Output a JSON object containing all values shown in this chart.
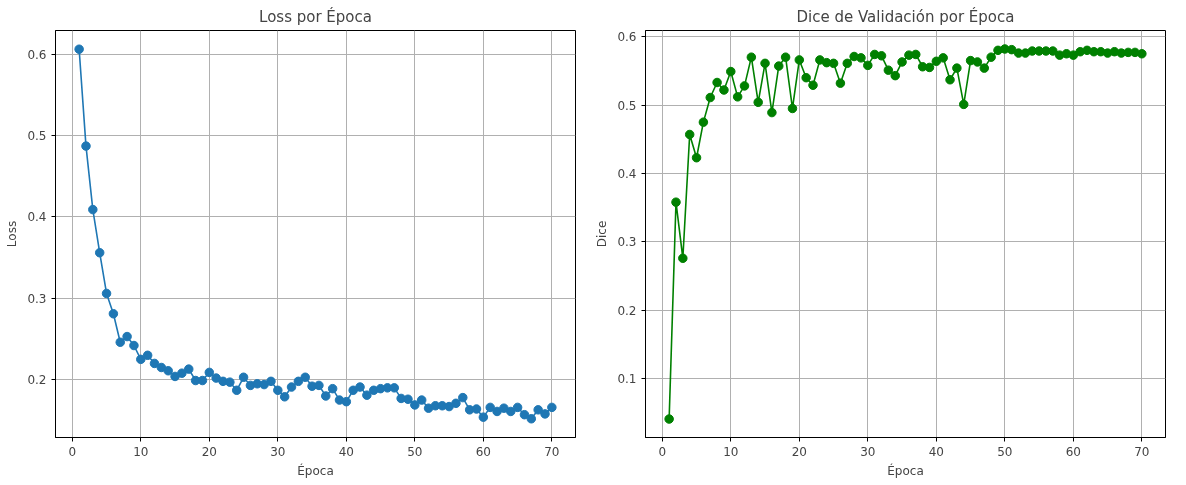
{
  "chart_data": [
    {
      "type": "line",
      "title": "Loss por Época",
      "xlabel": "Época",
      "ylabel": "Loss",
      "marker": "circle",
      "line_style": "solid",
      "grid": true,
      "x": [
        1,
        2,
        3,
        4,
        5,
        6,
        7,
        8,
        9,
        10,
        11,
        12,
        13,
        14,
        15,
        16,
        17,
        18,
        19,
        20,
        21,
        22,
        23,
        24,
        25,
        26,
        27,
        28,
        29,
        30,
        31,
        32,
        33,
        34,
        35,
        36,
        37,
        38,
        39,
        40,
        41,
        42,
        43,
        44,
        45,
        46,
        47,
        48,
        49,
        50,
        51,
        52,
        53,
        54,
        55,
        56,
        57,
        58,
        59,
        60,
        61,
        62,
        63,
        64,
        65,
        66,
        67,
        68,
        69,
        70
      ],
      "series": [
        {
          "color": "#1f77b4",
          "values": [
            0.606,
            0.487,
            0.409,
            0.356,
            0.306,
            0.281,
            0.246,
            0.253,
            0.242,
            0.225,
            0.23,
            0.22,
            0.215,
            0.211,
            0.204,
            0.208,
            0.213,
            0.199,
            0.199,
            0.209,
            0.202,
            0.198,
            0.197,
            0.187,
            0.203,
            0.193,
            0.195,
            0.194,
            0.198,
            0.187,
            0.179,
            0.191,
            0.198,
            0.203,
            0.192,
            0.193,
            0.18,
            0.189,
            0.175,
            0.173,
            0.187,
            0.191,
            0.181,
            0.187,
            0.189,
            0.19,
            0.19,
            0.177,
            0.176,
            0.169,
            0.175,
            0.165,
            0.168,
            0.168,
            0.167,
            0.171,
            0.178,
            0.163,
            0.164,
            0.154,
            0.166,
            0.161,
            0.165,
            0.161,
            0.166,
            0.157,
            0.152,
            0.163,
            0.158,
            0.166
          ]
        }
      ],
      "xlim": [
        -2.45,
        73.45
      ],
      "xticks": [
        0,
        10,
        20,
        30,
        40,
        50,
        60,
        70
      ],
      "ylim": [
        0.129,
        0.629
      ],
      "yticks": [
        0.2,
        0.3,
        0.4,
        0.5,
        0.6
      ]
    },
    {
      "type": "line",
      "title": "Dice de Validación por Época",
      "xlabel": "Época",
      "ylabel": "Dice",
      "marker": "circle",
      "line_style": "solid",
      "grid": true,
      "x": [
        1,
        2,
        3,
        4,
        5,
        6,
        7,
        8,
        9,
        10,
        11,
        12,
        13,
        14,
        15,
        16,
        17,
        18,
        19,
        20,
        21,
        22,
        23,
        24,
        25,
        26,
        27,
        28,
        29,
        30,
        31,
        32,
        33,
        34,
        35,
        36,
        37,
        38,
        39,
        40,
        41,
        42,
        43,
        44,
        45,
        46,
        47,
        48,
        49,
        50,
        51,
        52,
        53,
        54,
        55,
        56,
        57,
        58,
        59,
        60,
        61,
        62,
        63,
        64,
        65,
        66,
        67,
        68,
        69,
        70
      ],
      "series": [
        {
          "color": "#008000",
          "values": [
            0.041,
            0.358,
            0.276,
            0.457,
            0.423,
            0.475,
            0.511,
            0.533,
            0.522,
            0.549,
            0.512,
            0.528,
            0.57,
            0.504,
            0.561,
            0.489,
            0.557,
            0.57,
            0.495,
            0.566,
            0.54,
            0.529,
            0.566,
            0.562,
            0.561,
            0.532,
            0.561,
            0.571,
            0.569,
            0.558,
            0.574,
            0.572,
            0.551,
            0.543,
            0.563,
            0.573,
            0.574,
            0.556,
            0.555,
            0.564,
            0.569,
            0.537,
            0.554,
            0.501,
            0.565,
            0.563,
            0.554,
            0.57,
            0.58,
            0.582,
            0.581,
            0.576,
            0.576,
            0.579,
            0.579,
            0.579,
            0.579,
            0.573,
            0.575,
            0.573,
            0.578,
            0.58,
            0.578,
            0.578,
            0.576,
            0.578,
            0.576,
            0.577,
            0.577,
            0.575
          ]
        }
      ],
      "xlim": [
        -2.45,
        73.45
      ],
      "xticks": [
        0,
        10,
        20,
        30,
        40,
        50,
        60,
        70
      ],
      "ylim": [
        0.014,
        0.609
      ],
      "yticks": [
        0.1,
        0.2,
        0.3,
        0.4,
        0.5,
        0.6
      ]
    }
  ]
}
